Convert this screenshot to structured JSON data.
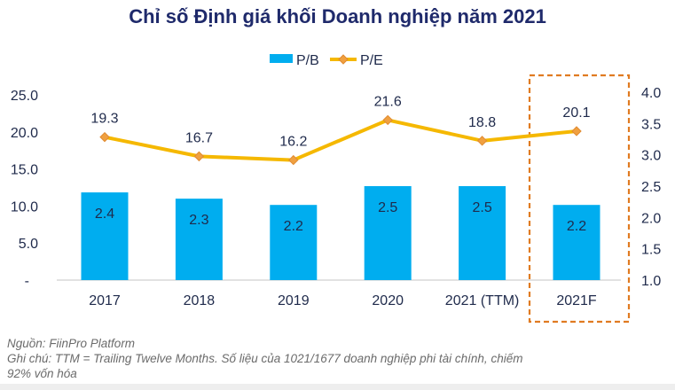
{
  "chart_data": {
    "type": "bar",
    "title": "Chỉ số Định giá khối Doanh nghiệp năm 2021",
    "categories": [
      "2017",
      "2018",
      "2019",
      "2020",
      "2021 (TTM)",
      "2021F"
    ],
    "series": [
      {
        "name": "P/B",
        "type": "bar",
        "axis": "right",
        "color": "#00adef",
        "values": [
          2.4,
          2.3,
          2.2,
          2.5,
          2.5,
          2.2
        ]
      },
      {
        "name": "P/E",
        "type": "line",
        "axis": "left",
        "color": "#f5b800",
        "marker_color": "#f0a040",
        "values": [
          19.3,
          16.7,
          16.2,
          21.6,
          18.8,
          20.1
        ]
      }
    ],
    "left_axis": {
      "range": [
        0,
        25
      ],
      "ticks": [
        "-",
        "5.0",
        "10.0",
        "15.0",
        "20.0",
        "25.0"
      ],
      "tick_values": [
        0,
        5,
        10,
        15,
        20,
        25
      ]
    },
    "right_axis": {
      "range": [
        1.0,
        4.0
      ],
      "ticks": [
        "1.0",
        "1.5",
        "2.0",
        "2.5",
        "3.0",
        "3.5",
        "4.0"
      ],
      "tick_values": [
        1.0,
        1.5,
        2.0,
        2.5,
        3.0,
        3.5,
        4.0
      ]
    },
    "legend": {
      "position": "top-center",
      "entries": [
        "P/B",
        "P/E"
      ]
    },
    "highlight": {
      "category": "2021F",
      "style": "dashed-box",
      "color": "#e07b22"
    },
    "grid": false,
    "xlabel": "",
    "ylabel": ""
  },
  "notes": {
    "source": "Nguồn: FiinPro Platform",
    "note_line1": "Ghi chú: TTM = Trailing Twelve Months. Số liệu của 1021/1677 doanh nghiệp phi tài chính, chiếm",
    "note_line2": "92% vốn hóa"
  },
  "colors": {
    "title": "#1f2a6b",
    "axis_text": "#1f2a4b",
    "label_text": "#1f2a4b"
  }
}
